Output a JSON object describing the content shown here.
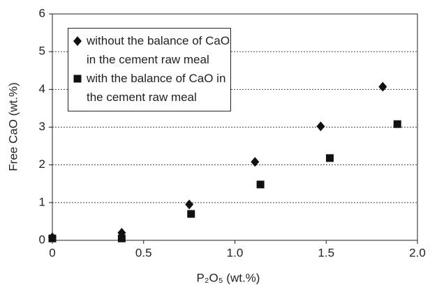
{
  "chart_data": {
    "type": "scatter",
    "xlabel": "P₂O₅ (wt.%)",
    "ylabel": "Free CaO (wt.%)",
    "xlim": [
      0,
      2
    ],
    "xticks": [
      0,
      0.5,
      {
        "value": 1,
        "label": "1.0"
      },
      1.5,
      {
        "value": 2,
        "label": "2.0"
      }
    ],
    "ylim": [
      0,
      6
    ],
    "yticks": [
      0,
      1,
      2,
      3,
      4,
      5,
      6
    ],
    "grid": true,
    "legend": "upper left",
    "series": [
      {
        "name": "without the balance of CaO in the cement raw meal",
        "color": "#111111",
        "marker": "diamond",
        "x": [
          0,
          0.38,
          0.75,
          1.11,
          1.47,
          1.81
        ],
        "values": [
          0.08,
          0.2,
          0.95,
          2.08,
          3.02,
          4.07
        ]
      },
      {
        "name": "with the balance of CaO in the cement raw meal",
        "color": "#111111",
        "marker": "square",
        "x": [
          0,
          0.38,
          0.76,
          1.14,
          1.52,
          1.89
        ],
        "values": [
          0.05,
          0.05,
          0.7,
          1.48,
          2.18,
          3.08
        ]
      }
    ]
  }
}
